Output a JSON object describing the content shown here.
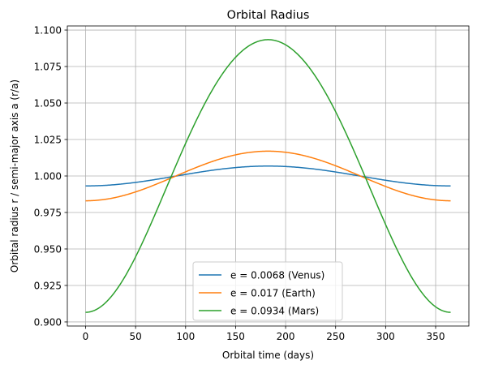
{
  "chart_data": {
    "type": "line",
    "title": "Orbital Radius",
    "xlabel": "Orbital time (days)",
    "ylabel": "Orbital radius r / semi-major axis a (r/a)",
    "xlim": [
      -18.25,
      383.25
    ],
    "ylim": [
      0.8972,
      1.1028
    ],
    "xticks": [
      0,
      50,
      100,
      150,
      200,
      250,
      300,
      350
    ],
    "yticks": [
      0.9,
      0.925,
      0.95,
      0.975,
      1.0,
      1.025,
      1.05,
      1.075,
      1.1
    ],
    "xtick_labels": [
      "0",
      "50",
      "100",
      "150",
      "200",
      "250",
      "300",
      "350"
    ],
    "ytick_labels": [
      "0.900",
      "0.925",
      "0.950",
      "0.975",
      "1.000",
      "1.025",
      "1.050",
      "1.075",
      "1.100"
    ],
    "grid": true,
    "legend_position": "lower-center",
    "period_days": 365,
    "series": [
      {
        "name": "e = 0.0068 (Venus)",
        "eccentricity": 0.0068,
        "color": "#1f77b4"
      },
      {
        "name": "e = 0.017 (Earth)",
        "eccentricity": 0.017,
        "color": "#ff7f0e"
      },
      {
        "name": "e = 0.0934 (Mars)",
        "eccentricity": 0.0934,
        "color": "#2ca02c"
      }
    ]
  }
}
